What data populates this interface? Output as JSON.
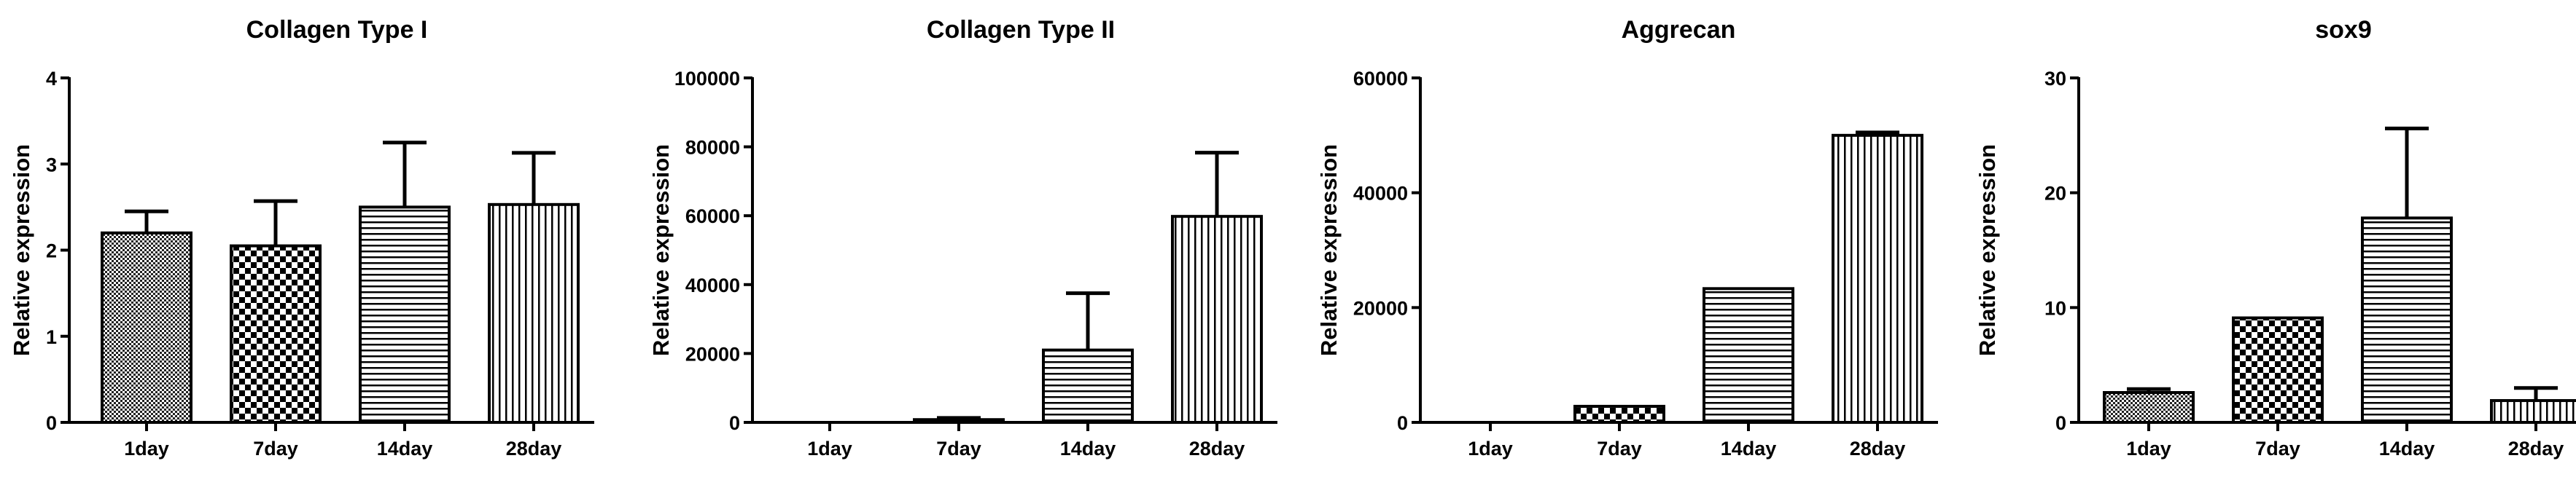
{
  "chart_data": [
    {
      "type": "bar",
      "title": "Collagen Type I",
      "ylabel": "Relative expression",
      "categories": [
        "1day",
        "7day",
        "14day",
        "28day"
      ],
      "values": [
        2.2,
        2.05,
        2.5,
        2.53
      ],
      "error": [
        0.25,
        0.52,
        0.75,
        0.6
      ],
      "ylim": [
        0,
        4
      ],
      "yticks": [
        0,
        1,
        2,
        3,
        4
      ],
      "ytick_labels": [
        "0",
        "1",
        "2",
        "3",
        "4"
      ],
      "patterns": [
        "fine-dots",
        "checker",
        "horizontal-lines",
        "vertical-lines"
      ],
      "grid": false
    },
    {
      "type": "bar",
      "title": "Collagen Type II",
      "ylabel": "Relative expression",
      "categories": [
        "1day",
        "7day",
        "14day",
        "28day"
      ],
      "values": [
        0,
        800,
        21000,
        59800
      ],
      "error": [
        0,
        500,
        16500,
        18500
      ],
      "ylim": [
        0,
        100000
      ],
      "yticks": [
        0,
        20000,
        40000,
        60000,
        80000,
        100000
      ],
      "ytick_labels": [
        "0",
        "20000",
        "40000",
        "60000",
        "80000",
        "100000"
      ],
      "patterns": [
        "fine-dots",
        "checker",
        "horizontal-lines",
        "vertical-lines"
      ],
      "grid": false
    },
    {
      "type": "bar",
      "title": "Aggrecan",
      "ylabel": "Relative expression",
      "categories": [
        "1day",
        "7day",
        "14day",
        "28day"
      ],
      "values": [
        0,
        2800,
        23300,
        50000
      ],
      "error": [
        0,
        0,
        0,
        500
      ],
      "ylim": [
        0,
        60000
      ],
      "yticks": [
        0,
        20000,
        40000,
        60000
      ],
      "ytick_labels": [
        "0",
        "20000",
        "40000",
        "60000"
      ],
      "patterns": [
        "fine-dots",
        "checker",
        "horizontal-lines",
        "vertical-lines"
      ],
      "grid": false
    },
    {
      "type": "bar",
      "title": "sox9",
      "ylabel": "Relative expression",
      "categories": [
        "1day",
        "7day",
        "14day",
        "28day"
      ],
      "values": [
        2.6,
        9.1,
        17.8,
        1.9
      ],
      "error": [
        0.3,
        0,
        7.8,
        1.1
      ],
      "ylim": [
        0,
        30
      ],
      "yticks": [
        0,
        10,
        20,
        30
      ],
      "ytick_labels": [
        "0",
        "10",
        "20",
        "30"
      ],
      "patterns": [
        "fine-dots",
        "checker",
        "horizontal-lines",
        "vertical-lines"
      ],
      "grid": false
    }
  ]
}
